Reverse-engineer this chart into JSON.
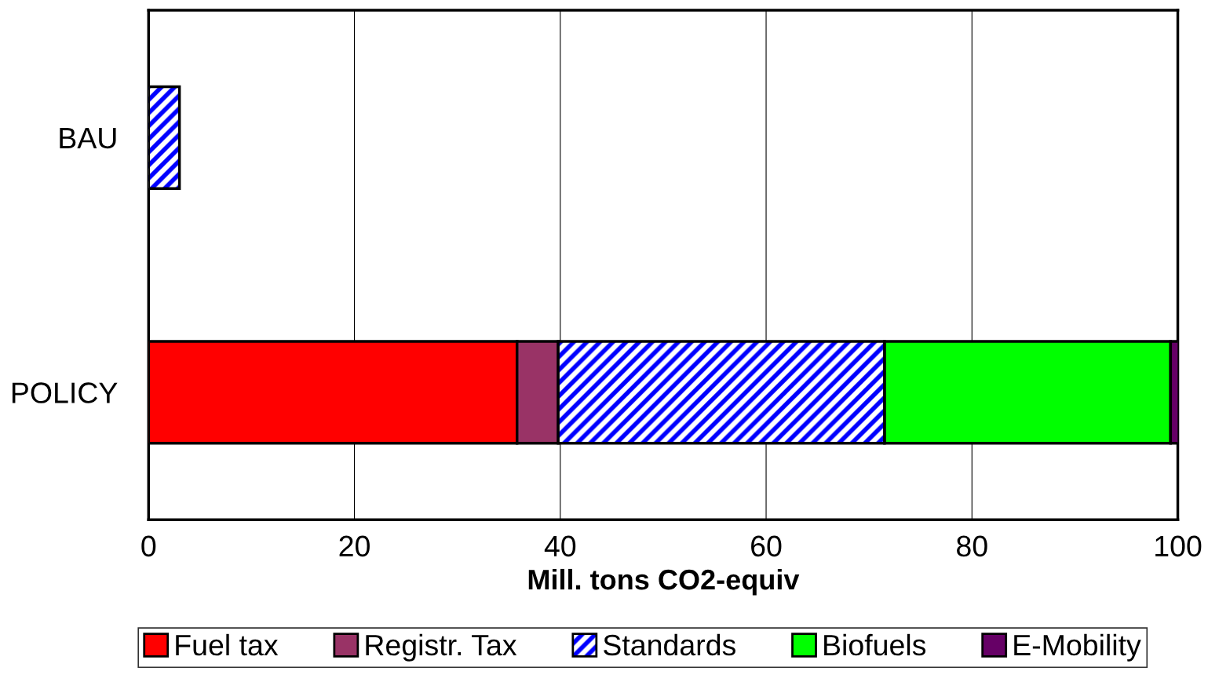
{
  "chart_data": {
    "type": "bar",
    "orientation": "horizontal",
    "stacked": true,
    "xlabel": "Mill. tons CO2-equiv",
    "categories": [
      "BAU",
      "POLICY"
    ],
    "series": [
      {
        "name": "Fuel tax",
        "color": "#ff0000",
        "values": [
          0,
          35.8
        ]
      },
      {
        "name": "Registr. Tax",
        "color": "#993366",
        "values": [
          0,
          4.0
        ]
      },
      {
        "name": "Standards",
        "color": "#0000ff",
        "values": [
          3.0,
          31.7
        ]
      },
      {
        "name": "Biofuels",
        "color": "#00ff00",
        "values": [
          0,
          27.8
        ]
      },
      {
        "name": "E-Mobility",
        "color": "#660066",
        "values": [
          0,
          0.8
        ]
      }
    ],
    "xlim": [
      0,
      100
    ],
    "xticks": [
      0,
      20,
      40,
      60,
      80,
      100
    ],
    "grid": "x",
    "legend": "bottom"
  }
}
